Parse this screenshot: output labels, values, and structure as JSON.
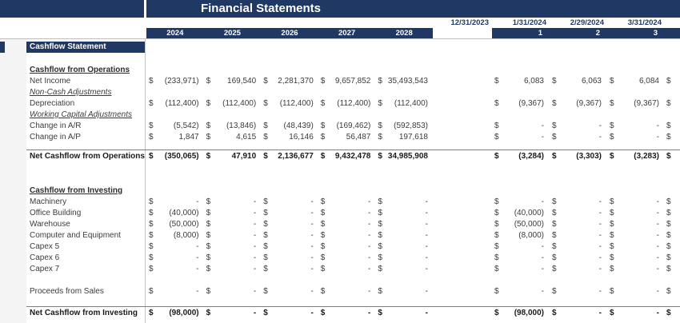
{
  "title": "Financial Statements",
  "sheet_header": "Cashflow Statement",
  "currency": "$",
  "colors": {
    "header_navy": "#1f3864",
    "header_text": "#ffffff",
    "date_text": "#1f3864",
    "body_text": "#3c3c3c",
    "total_border": "#7f7f7f"
  },
  "date_headers": [
    "12/31/2023",
    "1/31/2024",
    "2/29/2024",
    "3/31/2024"
  ],
  "year_headers": [
    "2024",
    "2025",
    "2026",
    "2027",
    "2028"
  ],
  "period_headers": [
    "1",
    "2",
    "3"
  ],
  "rows": [
    {
      "label": "Cashflow from Operations",
      "style": "section"
    },
    {
      "label": "Net Income",
      "style": "data",
      "annual": [
        "(233,971)",
        "169,540",
        "2,281,370",
        "9,657,852",
        "35,493,543"
      ],
      "monthly": [
        "6,083",
        "6,063",
        "6,084"
      ]
    },
    {
      "label": "Non-Cash Adjustments",
      "style": "subsection"
    },
    {
      "label": "Depreciation",
      "style": "data",
      "annual": [
        "(112,400)",
        "(112,400)",
        "(112,400)",
        "(112,400)",
        "(112,400)"
      ],
      "monthly": [
        "(9,367)",
        "(9,367)",
        "(9,367)"
      ]
    },
    {
      "label": "Working Capital Adjustments",
      "style": "subsection"
    },
    {
      "label": "Change in A/R",
      "style": "data",
      "annual": [
        "(5,542)",
        "(13,846)",
        "(48,439)",
        "(169,462)",
        "(592,853)"
      ],
      "monthly": [
        "-",
        "-",
        "-"
      ]
    },
    {
      "label": "Change in A/P",
      "style": "data",
      "annual": [
        "1,847",
        "4,615",
        "16,146",
        "56,487",
        "197,618"
      ],
      "monthly": [
        "-",
        "-",
        "-"
      ]
    },
    {
      "label": "Net Cashflow from Operations",
      "style": "total",
      "annual": [
        "(350,065)",
        "47,910",
        "2,136,677",
        "9,432,478",
        "34,985,908"
      ],
      "monthly": [
        "(3,284)",
        "(3,303)",
        "(3,283)"
      ]
    },
    {
      "label": "Cashflow from Investing",
      "style": "section"
    },
    {
      "label": "Machinery",
      "style": "data",
      "annual": [
        "-",
        "-",
        "-",
        "-",
        "-"
      ],
      "monthly": [
        "-",
        "-",
        "-"
      ]
    },
    {
      "label": "Office Building",
      "style": "data",
      "annual": [
        "(40,000)",
        "-",
        "-",
        "-",
        "-"
      ],
      "monthly": [
        "(40,000)",
        "-",
        "-"
      ]
    },
    {
      "label": "Warehouse",
      "style": "data",
      "annual": [
        "(50,000)",
        "-",
        "-",
        "-",
        "-"
      ],
      "monthly": [
        "(50,000)",
        "-",
        "-"
      ]
    },
    {
      "label": "Computer and Equipment",
      "style": "data",
      "annual": [
        "(8,000)",
        "-",
        "-",
        "-",
        "-"
      ],
      "monthly": [
        "(8,000)",
        "-",
        "-"
      ]
    },
    {
      "label": "Capex 5",
      "style": "data",
      "annual": [
        "-",
        "-",
        "-",
        "-",
        "-"
      ],
      "monthly": [
        "-",
        "-",
        "-"
      ]
    },
    {
      "label": "Capex 6",
      "style": "data",
      "annual": [
        "-",
        "-",
        "-",
        "-",
        "-"
      ],
      "monthly": [
        "-",
        "-",
        "-"
      ]
    },
    {
      "label": "Capex 7",
      "style": "data",
      "annual": [
        "-",
        "-",
        "-",
        "-",
        "-"
      ],
      "monthly": [
        "-",
        "-",
        "-"
      ]
    },
    {
      "label": "Proceeds from Sales",
      "style": "data",
      "annual": [
        "-",
        "-",
        "-",
        "-",
        "-"
      ],
      "monthly": [
        "-",
        "-",
        "-"
      ]
    },
    {
      "label": "Net Cashflow from Investing",
      "style": "total",
      "annual": [
        "(98,000)",
        "-",
        "-",
        "-",
        "-"
      ],
      "monthly": [
        "(98,000)",
        "-",
        "-"
      ]
    }
  ]
}
